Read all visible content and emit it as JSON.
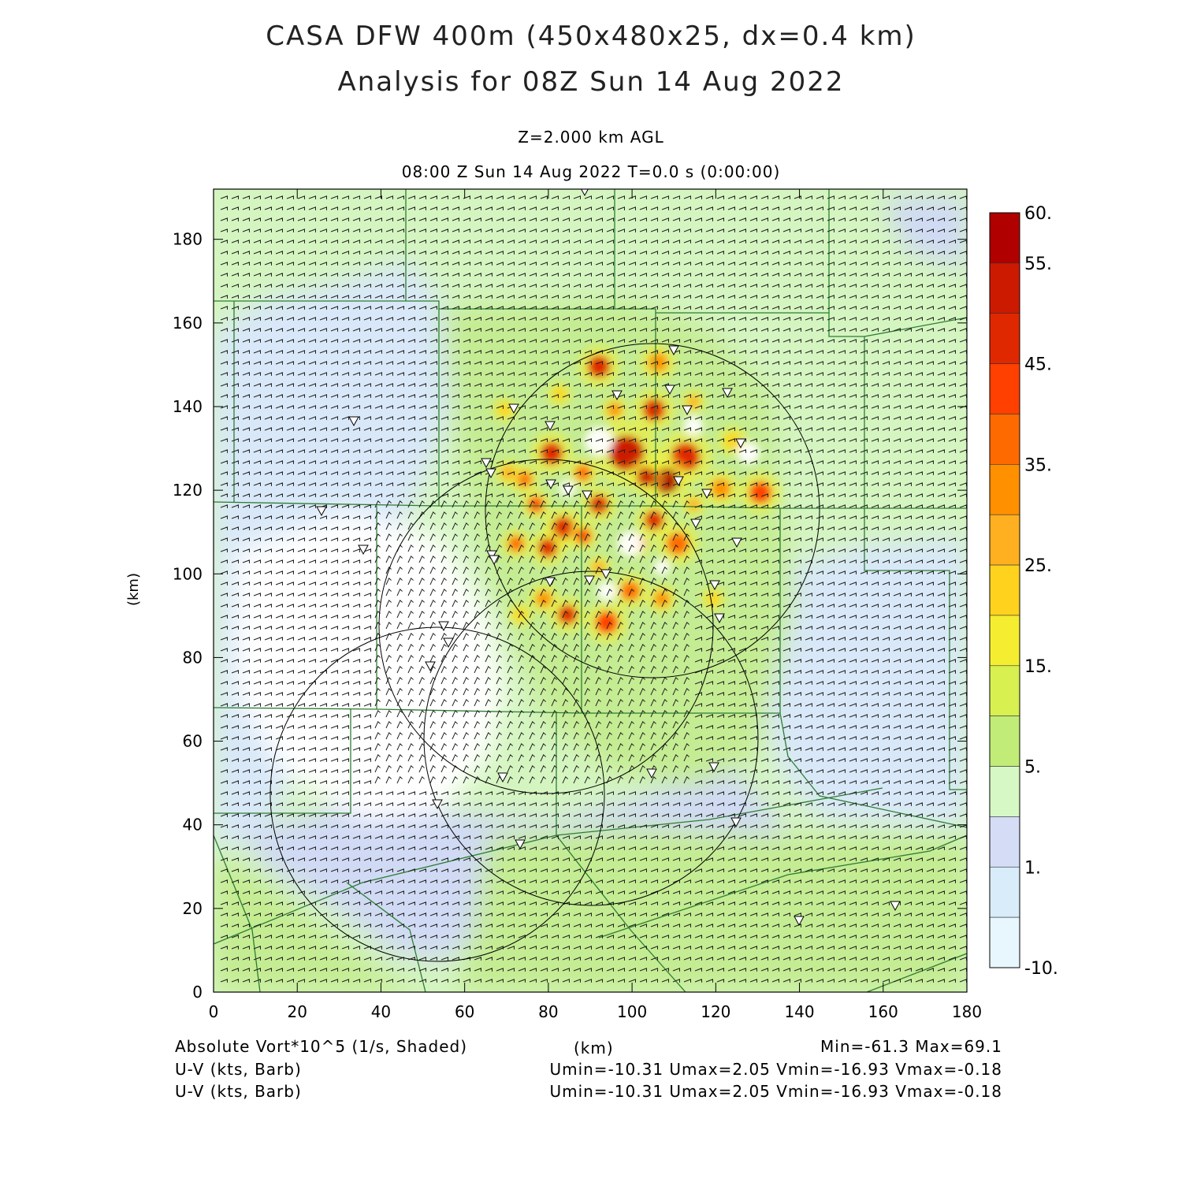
{
  "title": {
    "line1": "CASA DFW 400m (450x480x25, dx=0.4 km)",
    "line2": "Analysis for 08Z Sun 14 Aug 2022"
  },
  "subtitle": {
    "level": "Z=2.000 km AGL",
    "time": "08:00 Z Sun 14 Aug 2022   T=0.0 s (0:00:00)"
  },
  "axes": {
    "x_label": "(km)",
    "y_label": "(km)",
    "x_ticks": [
      "0",
      "20",
      "40",
      "60",
      "80",
      "100",
      "120",
      "140",
      "160",
      "180"
    ],
    "y_ticks": [
      "0",
      "20",
      "40",
      "60",
      "80",
      "100",
      "120",
      "140",
      "160",
      "180"
    ],
    "x_range": [
      0,
      180
    ],
    "y_range": [
      0,
      192
    ]
  },
  "colorbar": {
    "labels": [
      "60.",
      "55.",
      "45.",
      "35.",
      "25.",
      "15.",
      "5.",
      "1.",
      "-10."
    ],
    "colors": [
      "#b00000",
      "#cc1a00",
      "#e02800",
      "#ff4000",
      "#ff6a00",
      "#ff9000",
      "#ffb020",
      "#ffd21e",
      "#f5ee30",
      "#d8f050",
      "#c2ec78",
      "#d6f8c4",
      "#d4dcf6",
      "#d8ecfa",
      "#e8f6fe"
    ]
  },
  "footer": {
    "left1": "Absolute Vort*10^5 (1/s, Shaded)",
    "center1": "(km)",
    "right1": "Min=-61.3 Max=69.1",
    "left2": "U-V (kts, Barb)",
    "right2": "Umin=-10.31 Umax=2.05 Vmin=-16.93 Vmax=-0.18",
    "left3": "U-V (kts, Barb)",
    "right3": "Umin=-10.31 Umax=2.05 Vmin=-16.93 Vmax=-0.18"
  },
  "field_colors": {
    "green_light": "#d4f5c0",
    "green_mid": "#c4ec92",
    "blue_light": "#d8e8f8",
    "blue_mid": "#d0daf4",
    "white": "#ffffff",
    "county_line": "#2e7d32",
    "barb": "#222222"
  }
}
